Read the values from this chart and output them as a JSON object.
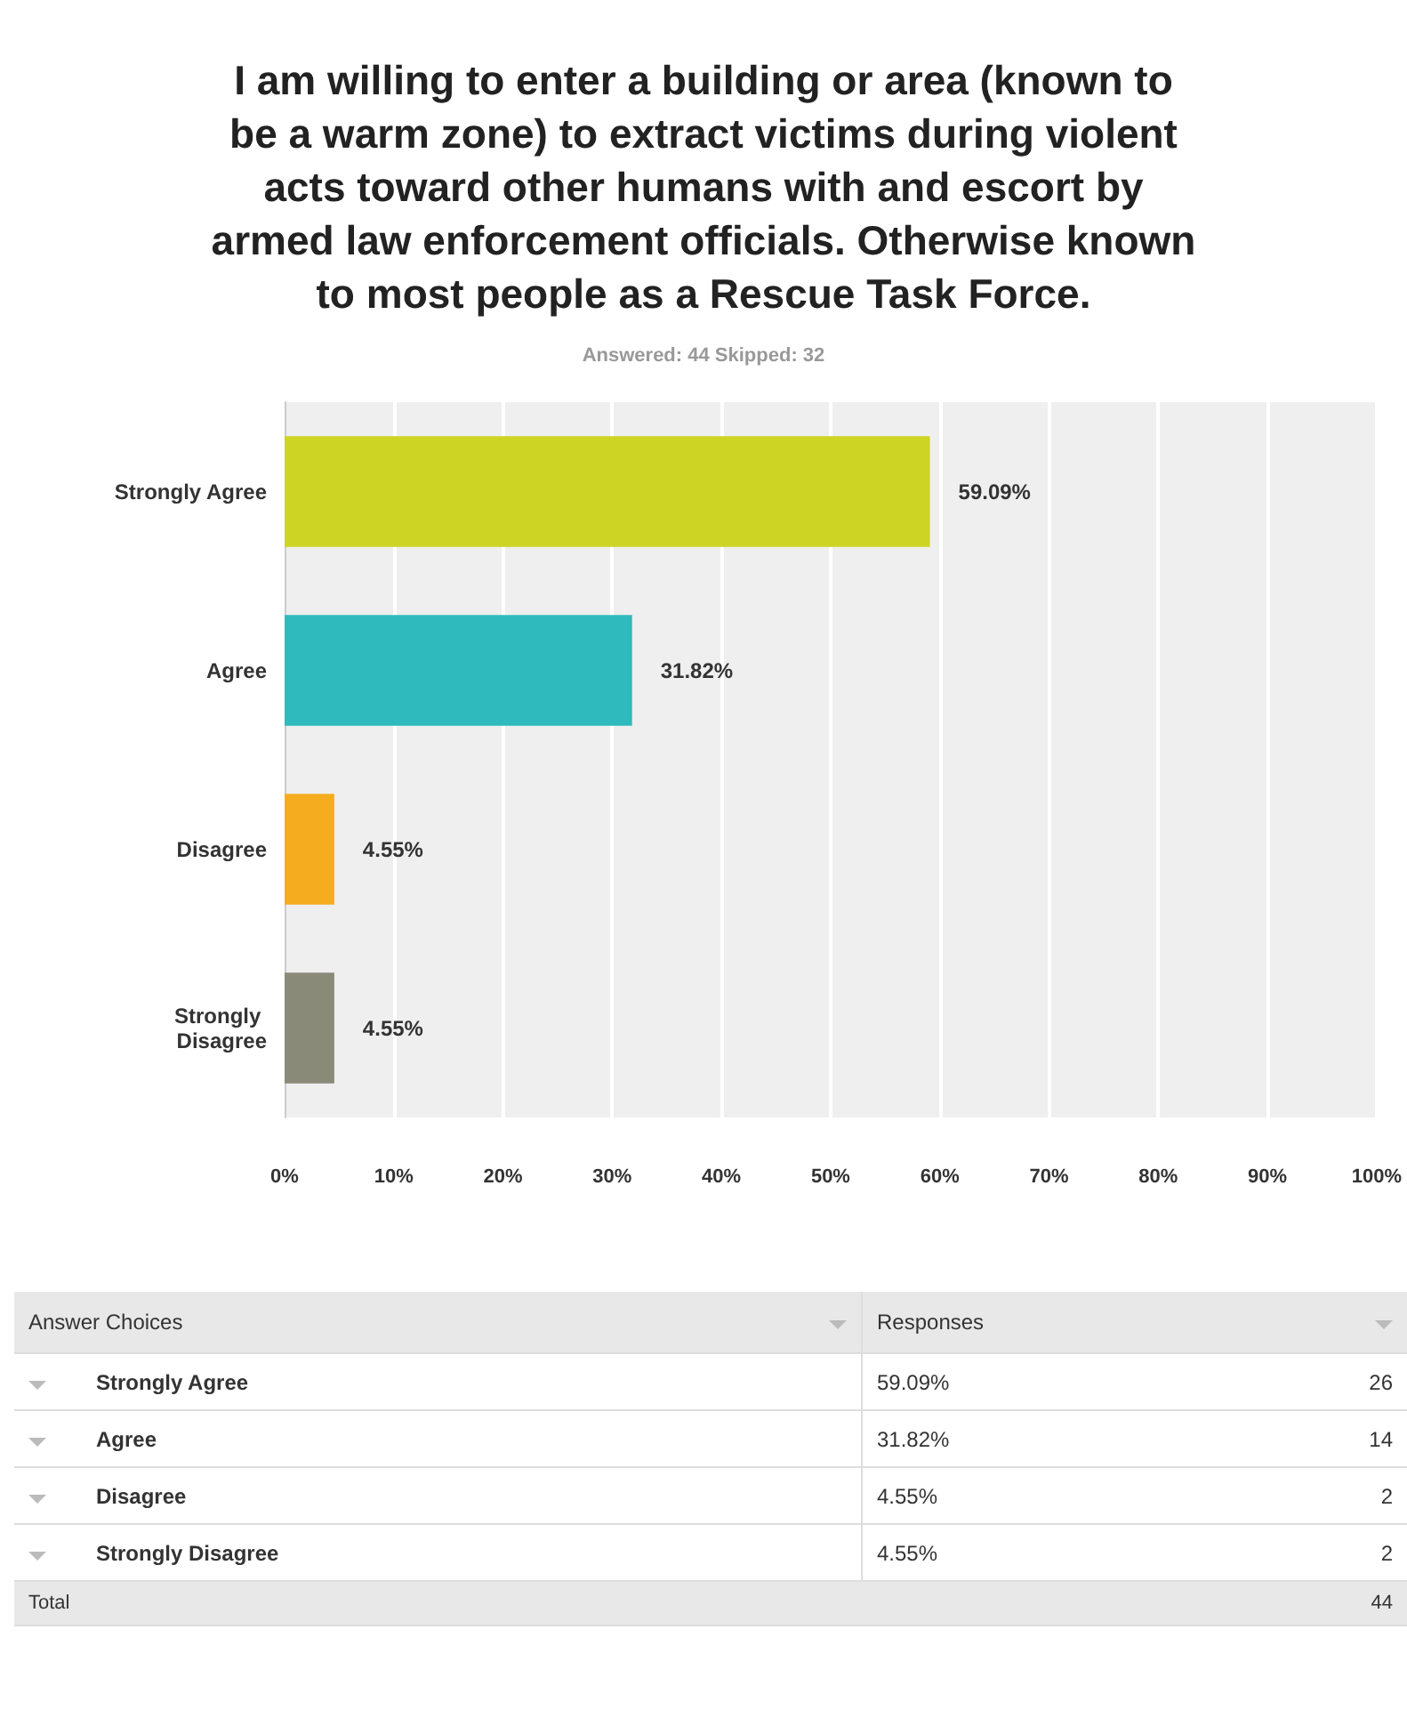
{
  "chart_data": {
    "type": "bar",
    "orientation": "horizontal",
    "title": "I am willing to enter a building or area (known to be a warm zone) to extract victims during violent acts toward other humans with and escort by armed law enforcement officials. Otherwise known to most people as a Rescue Task Force.",
    "subtitle": "Answered: 44    Skipped: 32",
    "categories": [
      "Strongly Agree",
      "Agree",
      "Disagree",
      "Strongly Disagree"
    ],
    "values": [
      59.09,
      31.82,
      4.55,
      4.55
    ],
    "colors": [
      "#cdd424",
      "#2fbbbd",
      "#f5ac1e",
      "#8a8a78"
    ],
    "value_labels": [
      "59.09%",
      "31.82%",
      "4.55%",
      "4.55%"
    ],
    "xlim": [
      0,
      100
    ],
    "xticks": [
      {
        "value": 0,
        "label": "0%"
      },
      {
        "value": 10,
        "label": "10%"
      },
      {
        "value": 20,
        "label": "20%"
      },
      {
        "value": 30,
        "label": "30%"
      },
      {
        "value": 40,
        "label": "40%"
      },
      {
        "value": 50,
        "label": "50%"
      },
      {
        "value": 60,
        "label": "60%"
      },
      {
        "value": 70,
        "label": "70%"
      },
      {
        "value": 80,
        "label": "80%"
      },
      {
        "value": 90,
        "label": "90%"
      },
      {
        "value": 100,
        "label": "100%"
      }
    ],
    "grid": "x",
    "annotations": [
      "Answer Choices",
      "Responses",
      "26",
      "14",
      "2",
      "2",
      "Total",
      "44"
    ]
  }
}
